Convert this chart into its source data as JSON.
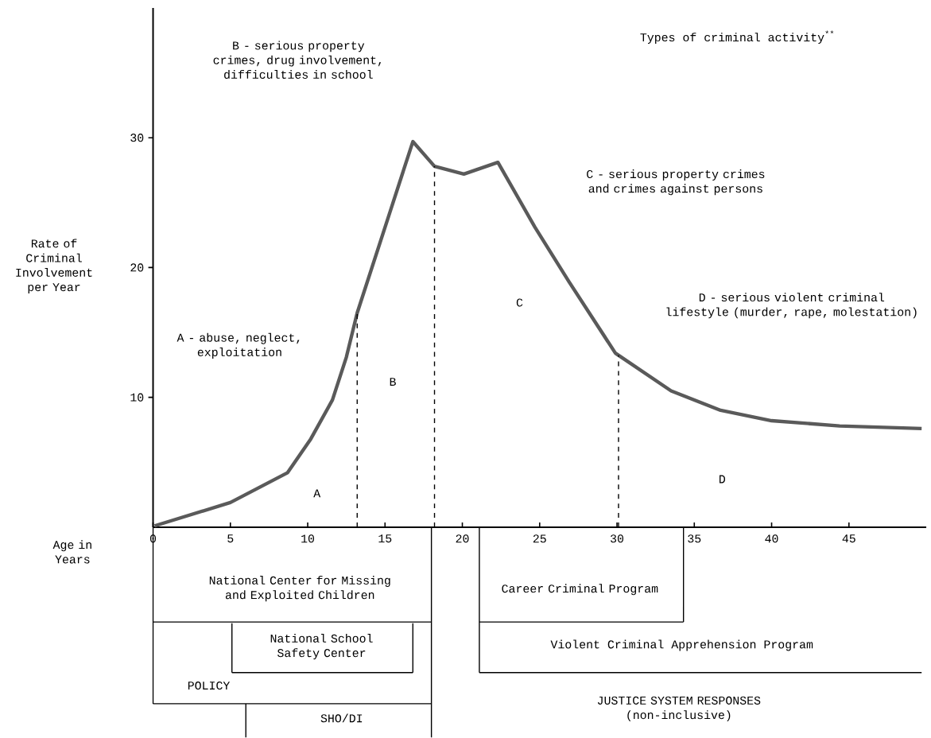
{
  "chart_data": {
    "type": "line",
    "xlabel": "Age in Years",
    "ylabel": "Rate of Criminal Involvement per Year",
    "series": [
      {
        "color": "#5a5a5a",
        "x": [
          0.1,
          5.0,
          8.7,
          10.2,
          11.6,
          12.5,
          13.2,
          15.3,
          16.8,
          18.2,
          20.1,
          22.3,
          24.7,
          26.9,
          29.9,
          33.5,
          36.7,
          40.0,
          44.4,
          49.7
        ],
        "values": [
          0.1,
          1.9,
          4.2,
          6.8,
          9.8,
          13.1,
          16.5,
          24.2,
          29.7,
          27.8,
          27.2,
          28.1,
          23.1,
          18.9,
          13.4,
          10.5,
          9.0,
          8.2,
          7.8,
          7.6
        ]
      }
    ],
    "xlim": [
      0,
      50
    ],
    "ylim": [
      0,
      40
    ],
    "xticks": [
      0,
      5,
      10,
      15,
      20,
      25,
      30,
      35,
      40,
      45
    ],
    "yticks": [
      10,
      20,
      30
    ],
    "ref_lines": [
      {
        "axis": "x",
        "value": 13.2,
        "line_style": "dashed"
      },
      {
        "axis": "x",
        "value": 18.2,
        "line_style": "dashed"
      },
      {
        "axis": "x",
        "value": 30.1,
        "line_style": "dashed"
      }
    ],
    "annotations": [
      "Types of criminal activity$^{**}$",
      "B - serious property crimes, drug involvement, difficulties in school",
      "C - serious property crimes and crimes against persons",
      "A - abuse, neglect, exploitation",
      "D - serious violent criminal lifestyle (murder, rape, molestation)",
      "A",
      "B",
      "C",
      "D",
      "National Center for Missing and Exploited Children",
      "National School Safety Center",
      "POLICY",
      "SHO/DI",
      "Career Criminal Program",
      "Violent Criminal Apprehension Program",
      "JUSTICE SYSTEM RESPONSES (non-inclusive)"
    ],
    "grid": false,
    "marker": "none",
    "line_style": "solid"
  }
}
